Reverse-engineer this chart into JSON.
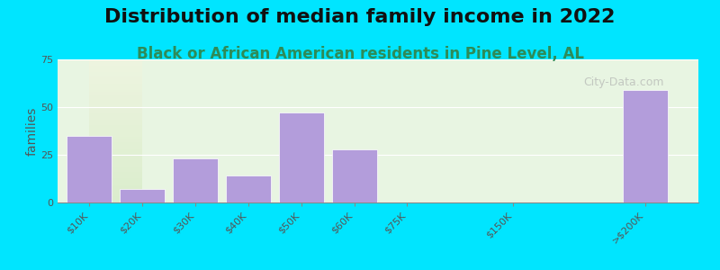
{
  "title": "Distribution of median family income in 2022",
  "subtitle": "Black or African American residents in Pine Level, AL",
  "xlabel": "",
  "ylabel": "families",
  "background_outer": "#00e5ff",
  "background_inner_gradient_top": "#f5f5e8",
  "background_inner_gradient_bottom": "#d4edda",
  "bar_color": "#b39ddb",
  "bar_color_last": "#b39ddb",
  "categories": [
    "$10K",
    "$20K",
    "$30K",
    "$40K",
    "$50K",
    "$60K",
    "$75K",
    "$150K",
    ">$200K"
  ],
  "values": [
    35,
    7,
    23,
    14,
    47,
    28,
    0,
    0,
    59
  ],
  "ylim": [
    0,
    75
  ],
  "yticks": [
    0,
    25,
    50,
    75
  ],
  "title_fontsize": 16,
  "subtitle_fontsize": 12,
  "ylabel_fontsize": 10,
  "tick_fontsize": 8,
  "watermark": "City-Data.com"
}
